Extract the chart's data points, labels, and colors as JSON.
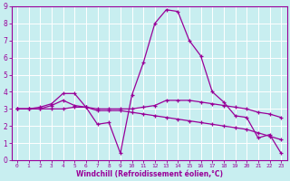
{
  "title": "",
  "xlabel": "Windchill (Refroidissement éolien,°C)",
  "ylabel": "",
  "bg_color": "#c8eef0",
  "line_color": "#990099",
  "grid_color": "#ffffff",
  "xlim": [
    -0.5,
    23.5
  ],
  "ylim": [
    0,
    9
  ],
  "xticks": [
    0,
    1,
    2,
    3,
    4,
    5,
    6,
    7,
    8,
    9,
    10,
    11,
    12,
    13,
    14,
    15,
    16,
    17,
    18,
    19,
    20,
    21,
    22,
    23
  ],
  "yticks": [
    0,
    1,
    2,
    3,
    4,
    5,
    6,
    7,
    8,
    9
  ],
  "line1_x": [
    0,
    1,
    2,
    3,
    4,
    5,
    6,
    7,
    8,
    9,
    10,
    11,
    12,
    13,
    14,
    15,
    16,
    17,
    18,
    19,
    20,
    21,
    22,
    23
  ],
  "line1_y": [
    3.0,
    3.0,
    3.1,
    3.3,
    3.9,
    3.9,
    3.1,
    2.1,
    2.2,
    0.4,
    3.8,
    5.7,
    8.0,
    8.8,
    8.7,
    7.0,
    6.1,
    4.0,
    3.4,
    2.6,
    2.5,
    1.3,
    1.5,
    0.4
  ],
  "line2_x": [
    0,
    1,
    2,
    3,
    4,
    5,
    6,
    7,
    8,
    9,
    10,
    11,
    12,
    13,
    14,
    15,
    16,
    17,
    18,
    19,
    20,
    21,
    22,
    23
  ],
  "line2_y": [
    3.0,
    3.0,
    3.0,
    3.2,
    3.5,
    3.2,
    3.1,
    3.0,
    3.0,
    3.0,
    3.0,
    3.1,
    3.2,
    3.5,
    3.5,
    3.5,
    3.4,
    3.3,
    3.2,
    3.1,
    3.0,
    2.8,
    2.7,
    2.5
  ],
  "line3_x": [
    0,
    1,
    2,
    3,
    4,
    5,
    6,
    7,
    8,
    9,
    10,
    11,
    12,
    13,
    14,
    15,
    16,
    17,
    18,
    19,
    20,
    21,
    22,
    23
  ],
  "line3_y": [
    3.0,
    3.0,
    3.0,
    3.0,
    3.0,
    3.1,
    3.1,
    2.9,
    2.9,
    2.9,
    2.8,
    2.7,
    2.6,
    2.5,
    2.4,
    2.3,
    2.2,
    2.1,
    2.0,
    1.9,
    1.8,
    1.6,
    1.4,
    1.2
  ]
}
